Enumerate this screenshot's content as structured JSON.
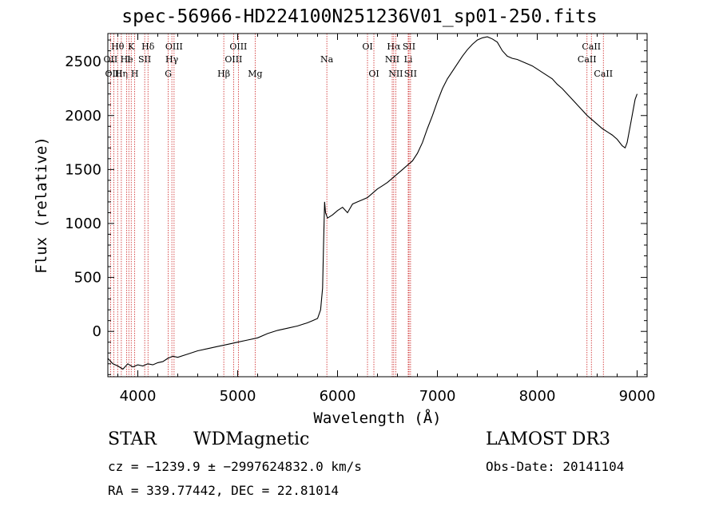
{
  "title": "spec-56966-HD224100N251236V01_sp01-250.fits",
  "footer": {
    "class": "STAR",
    "subclass": "WDMagnetic",
    "survey": "LAMOST DR3",
    "cz": "cz = −1239.9 ± −2997624832.0 km/s",
    "obs_date": "Obs-Date: 20141104",
    "radec": "RA = 339.77442, DEC =  22.81014"
  },
  "chart_data": {
    "type": "line",
    "title": "spec-56966-HD224100N251236V01_sp01-250.fits",
    "xlabel": "Wavelength (Å)",
    "ylabel": "Flux (relative)",
    "xlim": [
      3700,
      9100
    ],
    "ylim": [
      -420,
      2760
    ],
    "x_ticks": [
      4000,
      5000,
      6000,
      7000,
      8000,
      9000
    ],
    "y_ticks": [
      0,
      500,
      1000,
      1500,
      2000,
      2500
    ],
    "grid": false,
    "series": [
      {
        "x": [
          3700,
          3750,
          3800,
          3850,
          3900,
          3950,
          4000,
          4050,
          4100,
          4150,
          4200,
          4250,
          4300,
          4350,
          4400,
          4500,
          4600,
          4700,
          4800,
          4900,
          5000,
          5100,
          5200,
          5300,
          5400,
          5500,
          5600,
          5700,
          5750,
          5800,
          5830,
          5850,
          5860,
          5870,
          5880,
          5900,
          5950,
          6000,
          6050,
          6100,
          6150,
          6200,
          6250,
          6300,
          6350,
          6400,
          6450,
          6500,
          6550,
          6600,
          6650,
          6700,
          6750,
          6800,
          6850,
          6900,
          6950,
          7000,
          7050,
          7100,
          7150,
          7200,
          7250,
          7300,
          7350,
          7400,
          7450,
          7500,
          7550,
          7600,
          7650,
          7700,
          7750,
          7800,
          7850,
          7900,
          7950,
          8000,
          8050,
          8100,
          8150,
          8200,
          8250,
          8300,
          8350,
          8400,
          8450,
          8500,
          8550,
          8600,
          8650,
          8700,
          8750,
          8800,
          8850,
          8880,
          8900,
          8930,
          8960,
          8980,
          9000
        ],
        "y": [
          -250,
          -300,
          -320,
          -350,
          -300,
          -330,
          -310,
          -320,
          -300,
          -310,
          -290,
          -280,
          -250,
          -230,
          -240,
          -210,
          -180,
          -160,
          -140,
          -120,
          -100,
          -80,
          -60,
          -20,
          10,
          30,
          50,
          80,
          100,
          120,
          200,
          400,
          800,
          1200,
          1100,
          1050,
          1080,
          1120,
          1150,
          1100,
          1180,
          1200,
          1220,
          1240,
          1280,
          1320,
          1350,
          1380,
          1420,
          1460,
          1500,
          1540,
          1580,
          1650,
          1750,
          1880,
          2000,
          2130,
          2250,
          2340,
          2410,
          2480,
          2550,
          2610,
          2660,
          2700,
          2720,
          2730,
          2710,
          2680,
          2600,
          2550,
          2530,
          2520,
          2500,
          2480,
          2460,
          2430,
          2400,
          2370,
          2340,
          2290,
          2250,
          2200,
          2150,
          2100,
          2050,
          2000,
          1960,
          1920,
          1880,
          1850,
          1820,
          1780,
          1720,
          1700,
          1750,
          1900,
          2050,
          2150,
          2200
        ]
      }
    ],
    "lines": [
      {
        "label": "Hθ",
        "x": 3798,
        "row": 0
      },
      {
        "label": "OII",
        "x": 3727,
        "row": 1
      },
      {
        "label": "OIII",
        "x": 3760,
        "row": 2
      },
      {
        "label": "Hη",
        "x": 3835,
        "row": 2
      },
      {
        "label": "K",
        "x": 3934,
        "row": 0
      },
      {
        "label": "H",
        "x": 3969,
        "row": 2
      },
      {
        "label": "He",
        "x": 3889,
        "row": 1
      },
      {
        "label": "I",
        "x": 3910,
        "row": 1
      },
      {
        "label": "SII",
        "x": 4069,
        "row": 1
      },
      {
        "label": "Hδ",
        "x": 4102,
        "row": 0
      },
      {
        "label": "OIII",
        "x": 4363,
        "row": 0
      },
      {
        "label": "Hγ",
        "x": 4341,
        "row": 1
      },
      {
        "label": "G",
        "x": 4305,
        "row": 2
      },
      {
        "label": "Hβ",
        "x": 4861,
        "row": 2
      },
      {
        "label": "OIII",
        "x": 5007,
        "row": 0
      },
      {
        "label": "OIII",
        "x": 4959,
        "row": 1
      },
      {
        "label": "Mg",
        "x": 5175,
        "row": 2
      },
      {
        "label": "Na",
        "x": 5893,
        "row": 1
      },
      {
        "label": "OI",
        "x": 6300,
        "row": 0
      },
      {
        "label": "OI",
        "x": 6364,
        "row": 2
      },
      {
        "label": "Hα",
        "x": 6563,
        "row": 0
      },
      {
        "label": "SII",
        "x": 6716,
        "row": 0
      },
      {
        "label": "NII",
        "x": 6548,
        "row": 1
      },
      {
        "label": "Li",
        "x": 6708,
        "row": 1
      },
      {
        "label": "NII",
        "x": 6583,
        "row": 2
      },
      {
        "label": "SII",
        "x": 6731,
        "row": 2
      },
      {
        "label": "CaII",
        "x": 8542,
        "row": 0
      },
      {
        "label": "CaII",
        "x": 8498,
        "row": 1
      },
      {
        "label": "CaII",
        "x": 8662,
        "row": 2
      }
    ]
  }
}
